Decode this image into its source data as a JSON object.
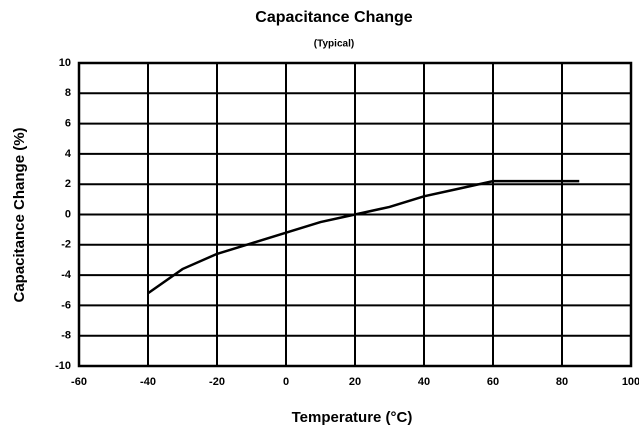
{
  "chart_data": {
    "type": "line",
    "title": "Capacitance Change",
    "subtitle": "(Typical)",
    "x_label": "Temperature (°C)",
    "y_label": "Capacitance Change (%)",
    "x": [
      -40,
      -30,
      -20,
      -10,
      0,
      10,
      20,
      30,
      40,
      50,
      60,
      70,
      80,
      85
    ],
    "series": [
      {
        "name": "Capacitance Change",
        "color": "#000000",
        "values": [
          -5.2,
          -3.6,
          -2.6,
          -1.9,
          -1.2,
          -0.5,
          0,
          0.5,
          1.2,
          1.7,
          2.2,
          2.2,
          2.2,
          2.2
        ]
      }
    ],
    "xlim": [
      -60,
      100
    ],
    "xticks": [
      -60,
      -40,
      -20,
      0,
      20,
      40,
      60,
      80,
      100
    ],
    "ylim": [
      -10,
      10
    ],
    "yticks": [
      -10,
      -8,
      -6,
      -4,
      -2,
      0,
      2,
      4,
      6,
      8,
      10
    ],
    "grid": true
  }
}
